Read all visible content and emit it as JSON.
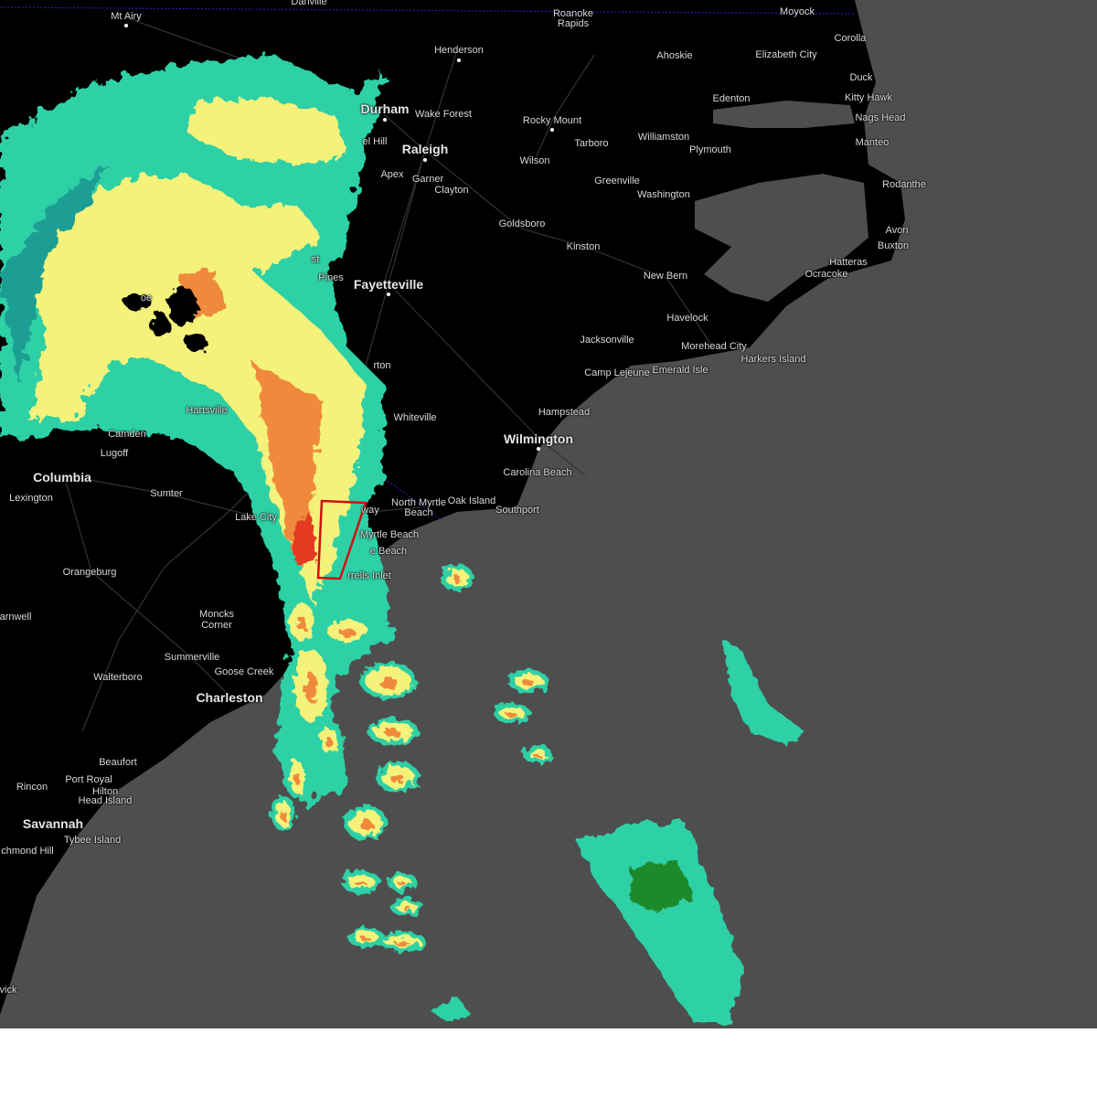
{
  "map": {
    "type": "radar-map",
    "colors": {
      "land": "#000000",
      "water": "#4e4e4e",
      "roads": "#3a3a3a",
      "state_border": "#1a1aa0",
      "warning_polygon": "#d01010",
      "radar_light": "#2fd0a6",
      "radar_dark_teal": "#1a9e94",
      "radar_green": "#1e8a2c",
      "radar_yellow": "#f4f27a",
      "radar_orange": "#ef8a3c",
      "radar_red": "#e23a22"
    },
    "cities": [
      {
        "name": "Mt Airy",
        "big": false
      },
      {
        "name": "Danville",
        "big": false
      },
      {
        "name": "Roanoke",
        "big": false
      },
      {
        "name": "Rapids",
        "big": false
      },
      {
        "name": "Moyock",
        "big": false
      },
      {
        "name": "Corolla",
        "big": false
      },
      {
        "name": "Henderson",
        "big": false
      },
      {
        "name": "Ahoskie",
        "big": false
      },
      {
        "name": "Elizabeth City",
        "big": false
      },
      {
        "name": "Duck",
        "big": false
      },
      {
        "name": "Edenton",
        "big": false
      },
      {
        "name": "Kitty Hawk",
        "big": false
      },
      {
        "name": "Durham",
        "big": true
      },
      {
        "name": "Wake Forest",
        "big": false
      },
      {
        "name": "Rocky Mount",
        "big": false
      },
      {
        "name": "Nags Head",
        "big": false
      },
      {
        "name": "el Hill",
        "big": false
      },
      {
        "name": "Raleigh",
        "big": true
      },
      {
        "name": "Tarboro",
        "big": false
      },
      {
        "name": "Williamston",
        "big": false
      },
      {
        "name": "Plymouth",
        "big": false
      },
      {
        "name": "Manteo",
        "big": false
      },
      {
        "name": "Wilson",
        "big": false
      },
      {
        "name": "Apex",
        "big": false
      },
      {
        "name": "Garner",
        "big": false
      },
      {
        "name": "Clayton",
        "big": false
      },
      {
        "name": "Greenville",
        "big": false
      },
      {
        "name": "Washington",
        "big": false
      },
      {
        "name": "Rodanthe",
        "big": false
      },
      {
        "name": "Goldsboro",
        "big": false
      },
      {
        "name": "Avon",
        "big": false
      },
      {
        "name": "Buxton",
        "big": false
      },
      {
        "name": "Kinston",
        "big": false
      },
      {
        "name": "Hatteras",
        "big": false
      },
      {
        "name": "New Bern",
        "big": false
      },
      {
        "name": "Ocracoke",
        "big": false
      },
      {
        "name": "Fayetteville",
        "big": true
      },
      {
        "name": "Pines",
        "big": false
      },
      {
        "name": "Havelock",
        "big": false
      },
      {
        "name": "Jacksonville",
        "big": false
      },
      {
        "name": "Morehead City",
        "big": false
      },
      {
        "name": "Harkers Island",
        "big": false
      },
      {
        "name": "Camp Lejeune",
        "big": false
      },
      {
        "name": "Emerald Isle",
        "big": false
      },
      {
        "name": "rton",
        "big": false
      },
      {
        "name": "Hampstead",
        "big": false
      },
      {
        "name": "Whiteville",
        "big": false
      },
      {
        "name": "Hartsville",
        "big": false
      },
      {
        "name": "Camden",
        "big": false
      },
      {
        "name": "Wilmington",
        "big": true
      },
      {
        "name": "Lugoff",
        "big": false
      },
      {
        "name": "Columbia",
        "big": true
      },
      {
        "name": "Carolina Beach",
        "big": false
      },
      {
        "name": "Lexington",
        "big": false
      },
      {
        "name": "Sumter",
        "big": false
      },
      {
        "name": "North Myrtle",
        "big": false
      },
      {
        "name": "Beach",
        "big": false
      },
      {
        "name": "Oak Island",
        "big": false
      },
      {
        "name": "way",
        "big": false
      },
      {
        "name": "Southport",
        "big": false
      },
      {
        "name": "Lake City",
        "big": false
      },
      {
        "name": "Myrtle Beach",
        "big": false
      },
      {
        "name": "e Beach",
        "big": false
      },
      {
        "name": "rrells Inlet",
        "big": false
      },
      {
        "name": "Orangeburg",
        "big": false
      },
      {
        "name": "arnwell",
        "big": false
      },
      {
        "name": "Moncks",
        "big": false
      },
      {
        "name": "Corner",
        "big": false
      },
      {
        "name": "Summerville",
        "big": false
      },
      {
        "name": "Goose Creek",
        "big": false
      },
      {
        "name": "Walterboro",
        "big": false
      },
      {
        "name": "Charleston",
        "big": true
      },
      {
        "name": "Beaufort",
        "big": false
      },
      {
        "name": "Port Royal",
        "big": false
      },
      {
        "name": "Rincon",
        "big": false
      },
      {
        "name": "Hilton",
        "big": false
      },
      {
        "name": "Head Island",
        "big": false
      },
      {
        "name": "Savannah",
        "big": true
      },
      {
        "name": "Tybee Island",
        "big": false
      },
      {
        "name": "chmond Hill",
        "big": false
      },
      {
        "name": "vick",
        "big": false
      },
      {
        "name": "oe",
        "big": false
      },
      {
        "name": "st",
        "big": false
      }
    ]
  }
}
